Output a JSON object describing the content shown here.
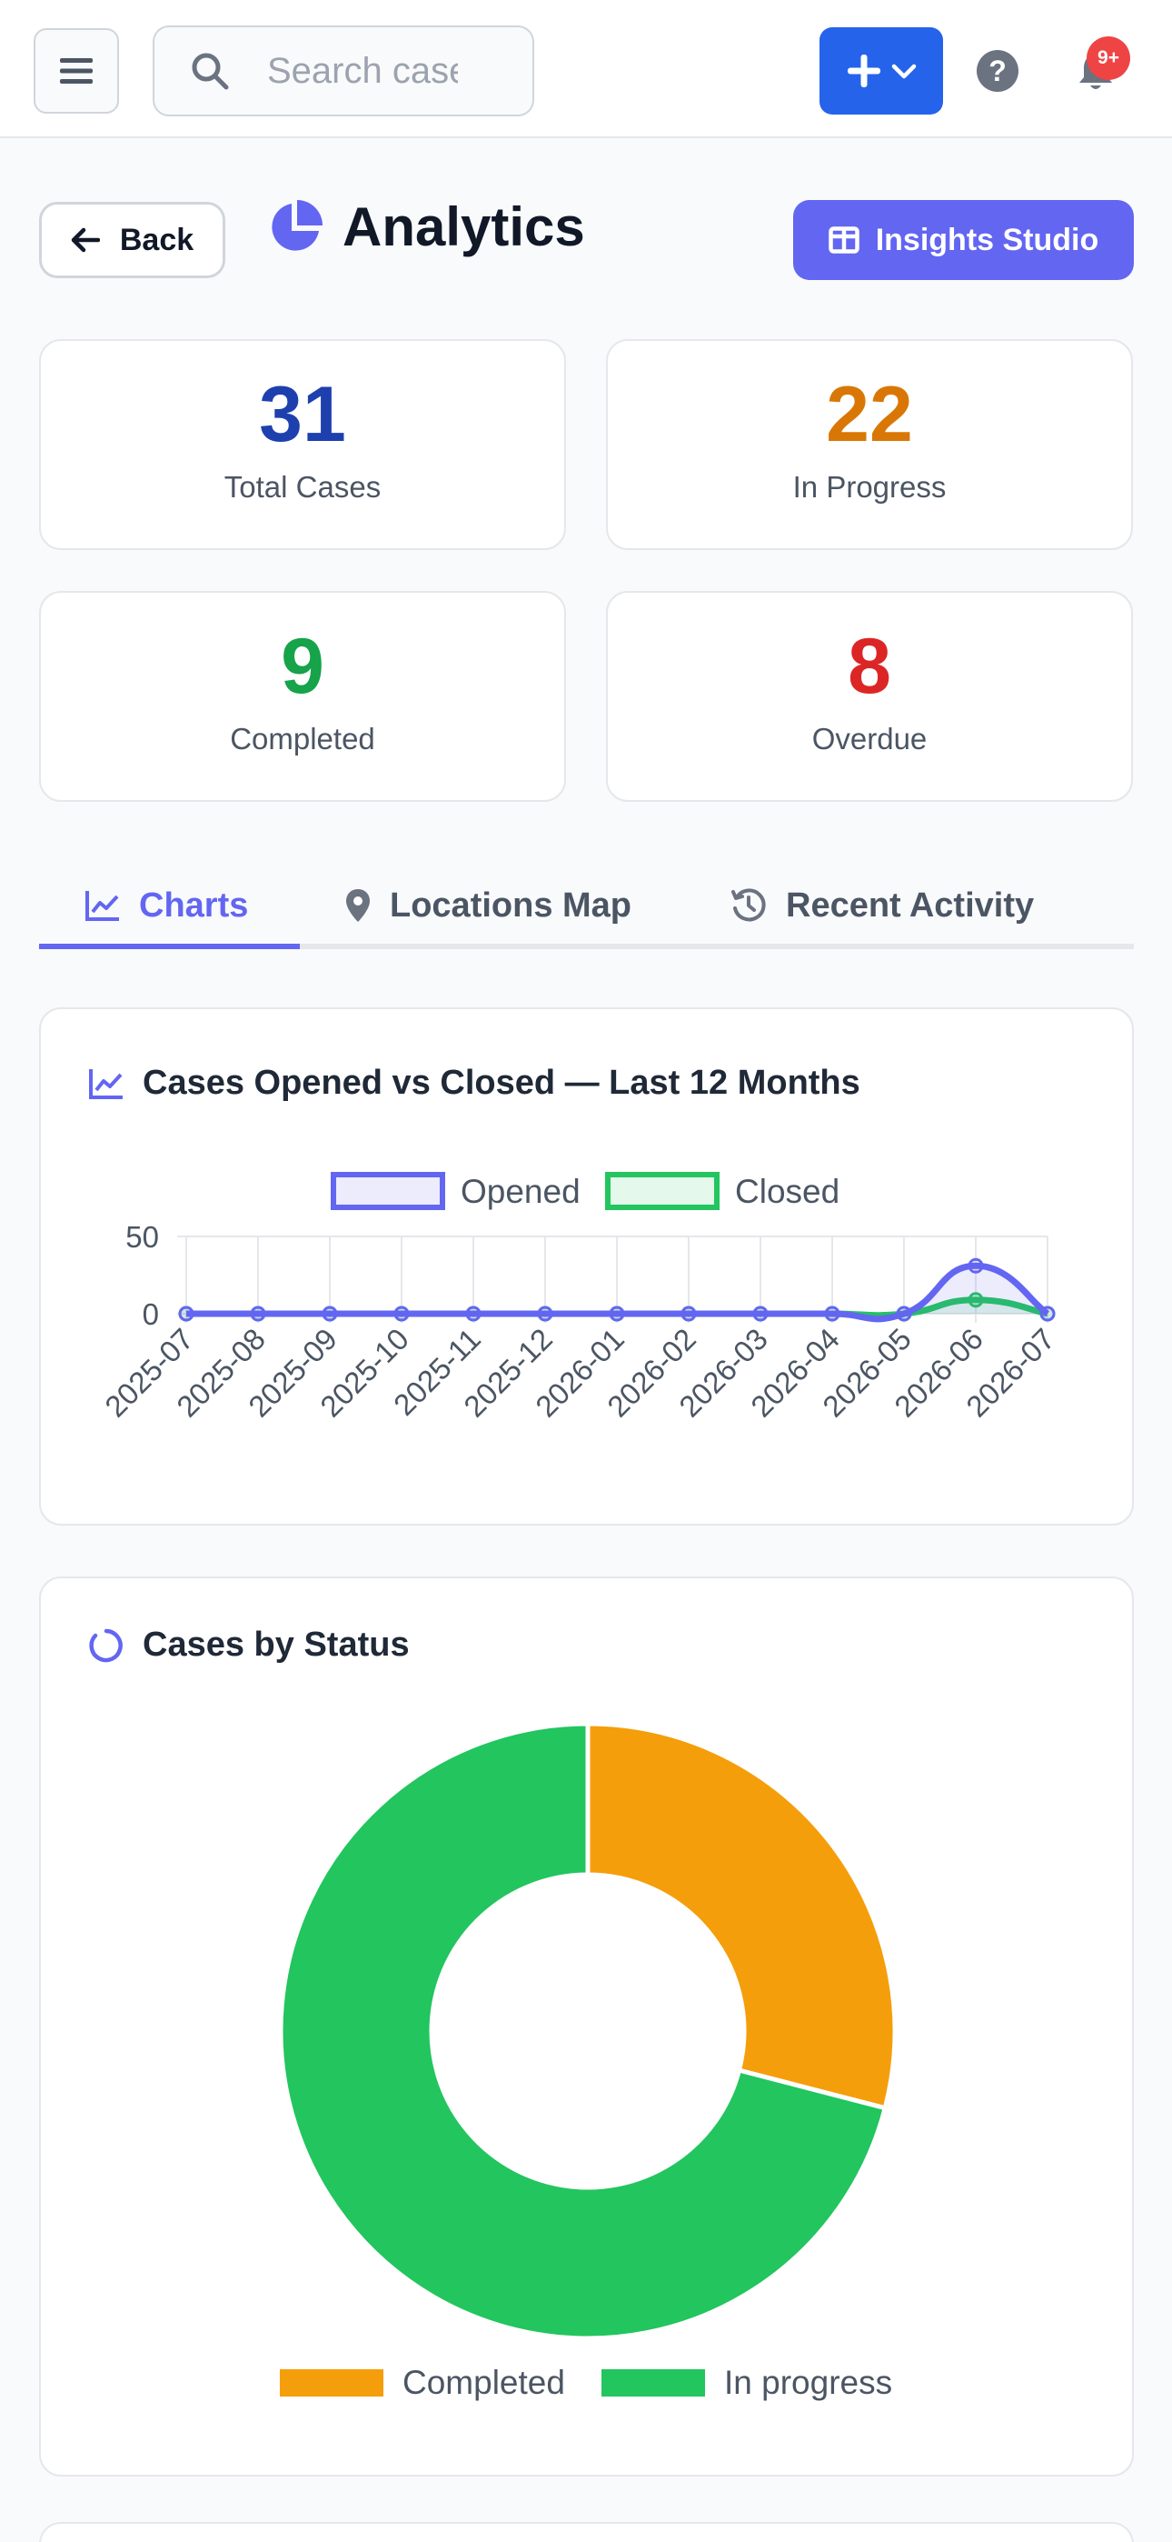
{
  "header": {
    "search_placeholder": "Search cases",
    "notifications_badge": "9+"
  },
  "page": {
    "back_label": "Back",
    "title": "Analytics",
    "studio_label": "Insights Studio"
  },
  "stats": [
    {
      "value": "31",
      "label": "Total Cases",
      "color": "#1e40af"
    },
    {
      "value": "22",
      "label": "In Progress",
      "color": "#d97706"
    },
    {
      "value": "9",
      "label": "Completed",
      "color": "#16a34a"
    },
    {
      "value": "8",
      "label": "Overdue",
      "color": "#dc2626"
    }
  ],
  "tabs": [
    {
      "label": "Charts",
      "active": true
    },
    {
      "label": "Locations Map",
      "active": false
    },
    {
      "label": "Recent Activity",
      "active": false
    }
  ],
  "colors": {
    "accent": "#6366f1",
    "opened": "#6366f1",
    "closed": "#22c55e",
    "completed": "#f59e0b",
    "in_progress": "#22c55e"
  },
  "line_chart_title": "Cases Opened vs Closed — Last 12 Months",
  "donut_chart_title": "Cases by Status",
  "chart_data": [
    {
      "type": "line",
      "x": [
        "2025-07",
        "2025-08",
        "2025-09",
        "2025-10",
        "2025-11",
        "2025-12",
        "2026-01",
        "2026-02",
        "2026-03",
        "2026-04",
        "2026-05",
        "2026-06",
        "2026-07"
      ],
      "series": [
        {
          "name": "Opened",
          "values": [
            0,
            0,
            0,
            0,
            0,
            0,
            0,
            0,
            0,
            0,
            0,
            31,
            0
          ]
        },
        {
          "name": "Closed",
          "values": [
            0,
            0,
            0,
            0,
            0,
            0,
            0,
            0,
            0,
            0,
            0,
            9,
            0
          ]
        }
      ],
      "yticks": [
        "50",
        "0"
      ],
      "ylim": [
        0,
        50
      ],
      "grid": true,
      "legend": "top-center"
    },
    {
      "type": "pie",
      "categories": [
        "Completed",
        "In progress"
      ],
      "values": [
        9,
        22
      ],
      "legend": "bottom-center"
    }
  ]
}
